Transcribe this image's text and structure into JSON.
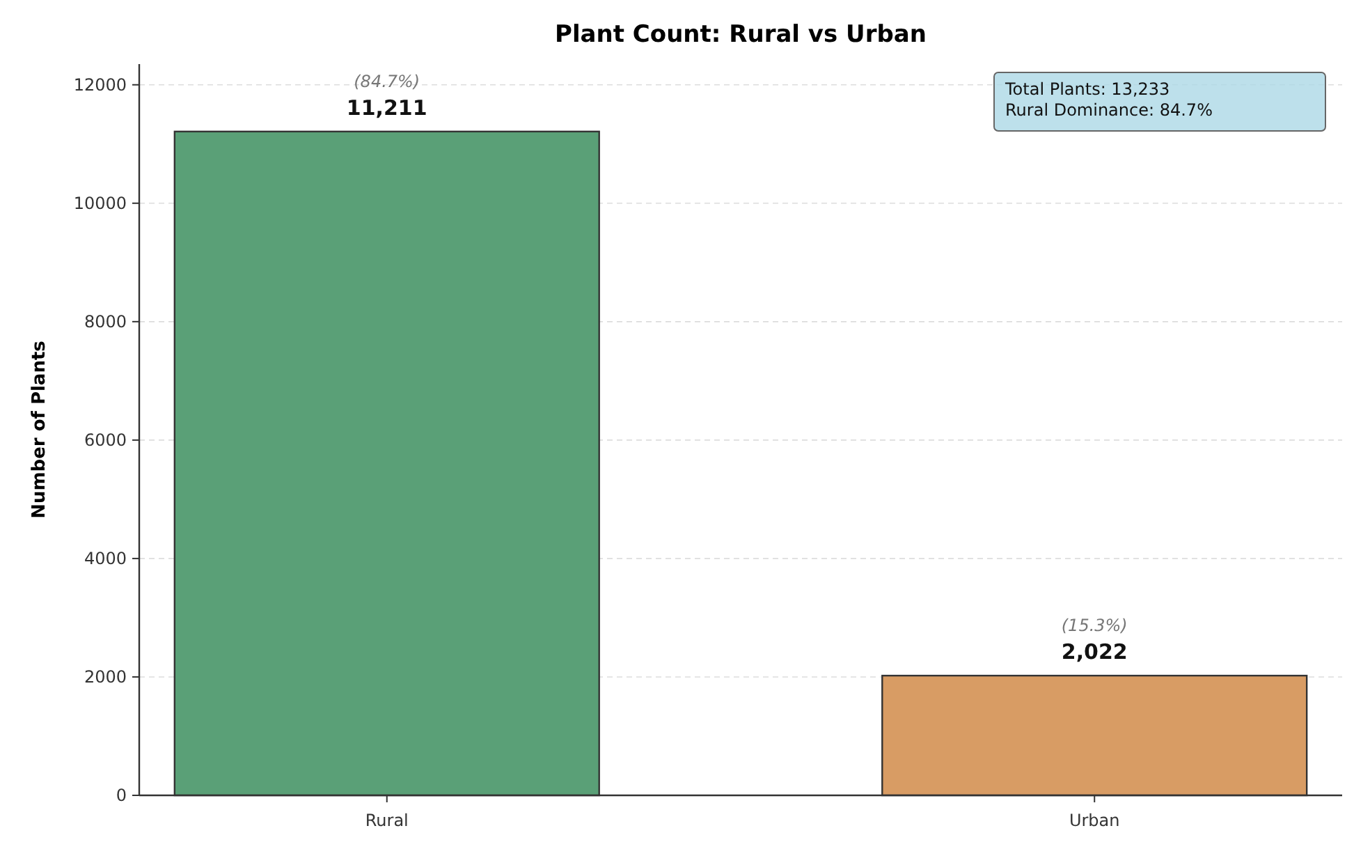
{
  "chart_data": {
    "type": "bar",
    "title": "Plant Count: Rural vs Urban",
    "ylabel": "Number of Plants",
    "categories": [
      "Rural",
      "Urban"
    ],
    "values": [
      11211,
      2022
    ],
    "colors": [
      "#5aa077",
      "#d89c64"
    ],
    "value_labels": [
      "11,211",
      "2,022"
    ],
    "ylim": [
      0,
      12350
    ],
    "yticks": [
      0,
      2000,
      4000,
      6000,
      8000,
      10000,
      12000
    ],
    "grid": "y",
    "annotations": [
      {
        "text": "(84.7%)",
        "x": "Rural",
        "y": 11211
      },
      {
        "text": "(15.3%)",
        "x": "Urban",
        "y": 2022
      },
      "Total Plants: 13,233",
      "Rural Dominance: 84.7%"
    ]
  }
}
